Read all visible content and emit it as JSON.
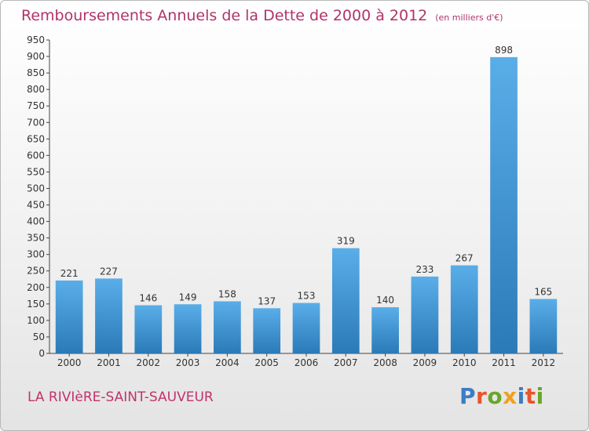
{
  "header": {
    "title": "Remboursements Annuels de la Dette de 2000 à 2012",
    "unit": "(en milliers d'€)"
  },
  "footer": {
    "commune": "LA RIVIèRE-SAINT-SAUVEUR",
    "logo_text": "Proxiti",
    "logo_colors": [
      "#3b7cc4",
      "#e8542c",
      "#6aa52a",
      "#f0a020",
      "#3b7cc4",
      "#e8542c",
      "#6aa52a"
    ]
  },
  "chart_data": {
    "type": "bar",
    "categories": [
      "2000",
      "2001",
      "2002",
      "2003",
      "2004",
      "2005",
      "2006",
      "2007",
      "2008",
      "2009",
      "2010",
      "2011",
      "2012"
    ],
    "values": [
      221,
      227,
      146,
      149,
      158,
      137,
      153,
      319,
      140,
      233,
      267,
      898,
      165
    ],
    "title": "Remboursements Annuels de la Dette de 2000 à 2012",
    "ylim": [
      0,
      950
    ],
    "yticks": [
      0,
      50,
      100,
      150,
      200,
      250,
      300,
      350,
      400,
      450,
      500,
      550,
      600,
      650,
      700,
      750,
      800,
      850,
      900,
      950
    ],
    "grid": false,
    "bar_color_top": "#5aaee8",
    "bar_color_bottom": "#2a7ab8"
  }
}
